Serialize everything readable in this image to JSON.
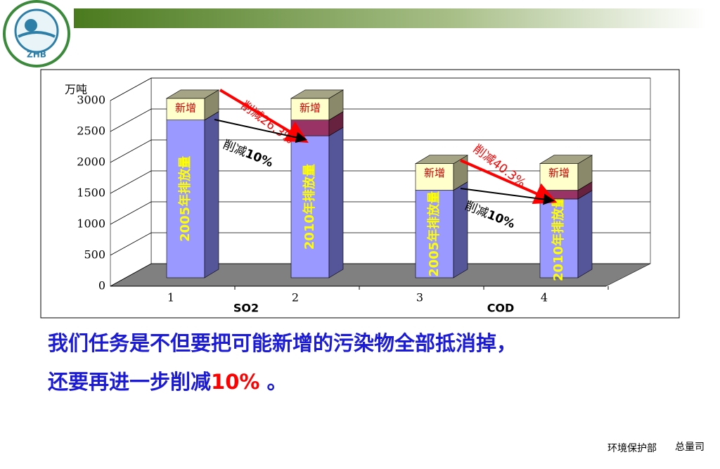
{
  "logo": "ZHB",
  "chart_data": {
    "type": "bar3d-stacked",
    "y_unit": "万吨",
    "categories": [
      "1",
      "2",
      "3",
      "4"
    ],
    "groups": [
      "SO2",
      "COD"
    ],
    "ylim": [
      0,
      3000
    ],
    "yticks": [
      0,
      500,
      1000,
      1500,
      2000,
      2500,
      3000
    ],
    "grid": true,
    "series": [
      {
        "color": "#9999ff",
        "values": [
          2549,
          2294,
          1414,
          1273
        ],
        "labels": [
          "2005年排放量",
          "2010年排放量",
          "2005年排放量",
          "2010年排放量"
        ]
      },
      {
        "color": "#993366",
        "values": [
          null,
          255,
          null,
          141
        ]
      },
      {
        "color": "#ffffcc",
        "values": [
          350,
          350,
          430,
          430
        ],
        "labels": [
          "新增",
          "新增",
          "新增",
          "新增"
        ]
      }
    ],
    "annotations": [
      {
        "text": "削减26.3%",
        "color": "#ff0000"
      },
      {
        "text": "削减",
        "emph": "10%",
        "color": "#000000"
      },
      {
        "text": "削减40.3%",
        "color": "#ff0000"
      },
      {
        "text": "削减",
        "emph": "10%",
        "color": "#000000"
      }
    ]
  },
  "body": {
    "line1": "我们任务是不但要把可能新增的污染物全部抵消掉，",
    "line2": "还要再进一步削减",
    "line2_emph": "10%",
    "line2_end": " 。"
  },
  "footer": {
    "org": "环境保护部",
    "dept": "总量司"
  }
}
